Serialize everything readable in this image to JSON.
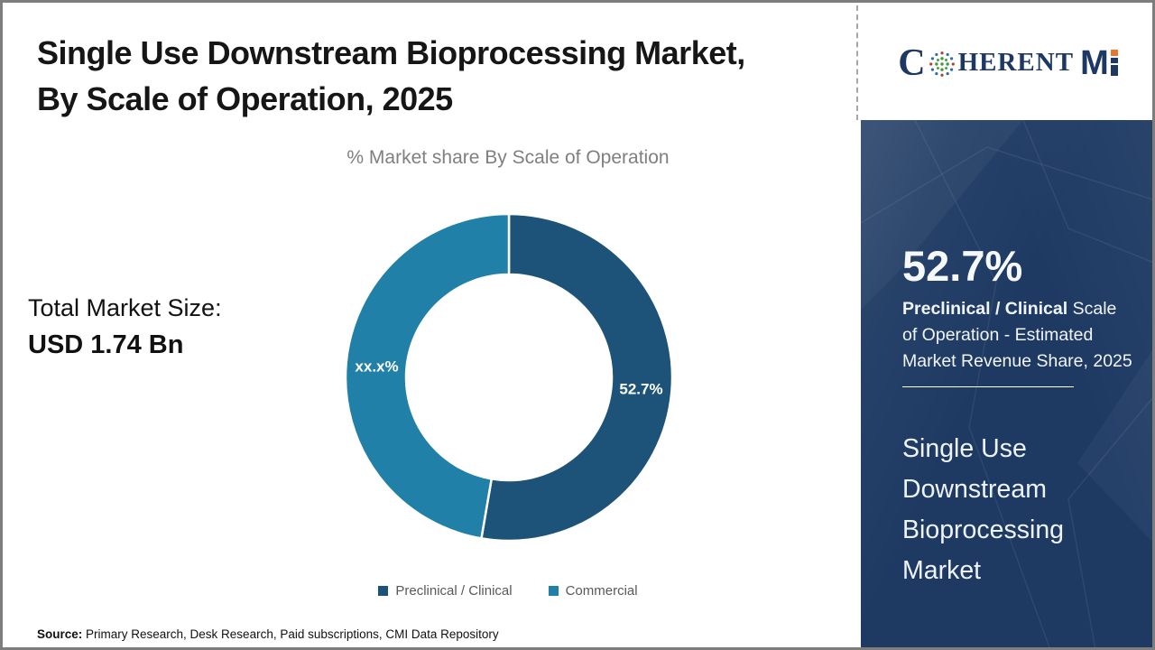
{
  "header": {
    "title_line1": "Single Use Downstream Bioprocessing Market,",
    "title_line2": "By Scale of Operation, 2025"
  },
  "logo": {
    "part_c": "C",
    "part_herent": "HERENT",
    "part_m": "M"
  },
  "stats": {
    "market_size_label": "Total Market Size:",
    "market_size_value": "USD 1.74 Bn"
  },
  "sidebar": {
    "stat_value": "52.7%",
    "desc_bold": "Preclinical / Clinical",
    "desc_rest": " Scale of Operation - Estimated Market Revenue Share, 2025",
    "market_name": "Single Use Downstream Bioprocessing Market"
  },
  "footer": {
    "source_label": "Source:",
    "source_text": " Primary Research, Desk Research, Paid subscriptions, CMI Data Repository"
  },
  "chart_data": {
    "type": "pie",
    "subtype": "donut",
    "title": "% Market share By Scale of Operation",
    "categories": [
      "Preclinical / Clinical",
      "Commercial"
    ],
    "values": [
      52.7,
      47.3
    ],
    "slice_labels": [
      "52.7%",
      "xx.x%"
    ],
    "colors": [
      "#1d5378",
      "#2080a8"
    ],
    "start_angle_deg": 0,
    "direction": "clockwise",
    "inner_radius_ratio": 0.63,
    "legend_position": "bottom",
    "note": "Commercial share shown masked as xx.x% in source image"
  },
  "colors": {
    "sidebar_bg": "#1e3a63",
    "accent_dark": "#1d5378",
    "accent_teal": "#2080a8",
    "logo_navy": "#1e3864",
    "logo_orange": "#e8762c",
    "subtitle_gray": "#7f7f7f",
    "legend_text": "#595959"
  }
}
